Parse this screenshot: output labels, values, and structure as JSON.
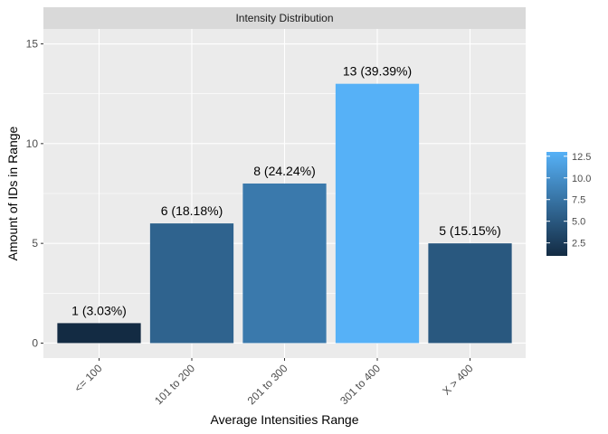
{
  "chart_data": {
    "type": "bar",
    "strip_title": "Intensity Distribution",
    "categories": [
      "<= 100",
      "101 to 200",
      "201 to 300",
      "301 to 400",
      "X > 400"
    ],
    "values": [
      1,
      6,
      8,
      13,
      5
    ],
    "data_labels": [
      "1 (3.03%)",
      "6 (18.18%)",
      "8 (24.24%)",
      "13 (39.39%)",
      "5 (15.15%)"
    ],
    "xlabel": "Average Intensities Range",
    "ylabel": "Amount of IDs in Range",
    "ylim": [
      -0.75,
      15.75
    ],
    "yticks": [
      0,
      5,
      10,
      15
    ],
    "grid": true,
    "legend": {
      "placement": "right",
      "type": "colorbar",
      "min": 1,
      "max": 13,
      "ticks": [
        2.5,
        5.0,
        7.5,
        10.0,
        12.5
      ],
      "tick_labels": [
        "2.5",
        "5.0",
        "7.5",
        "10.0",
        "12.5"
      ],
      "low_color": "#132B43",
      "high_color": "#56B1F7"
    },
    "colors": {
      "panel_bg": "#EBEBEB",
      "strip_bg": "#D9D9D9",
      "grid": "#FFFFFF"
    }
  }
}
